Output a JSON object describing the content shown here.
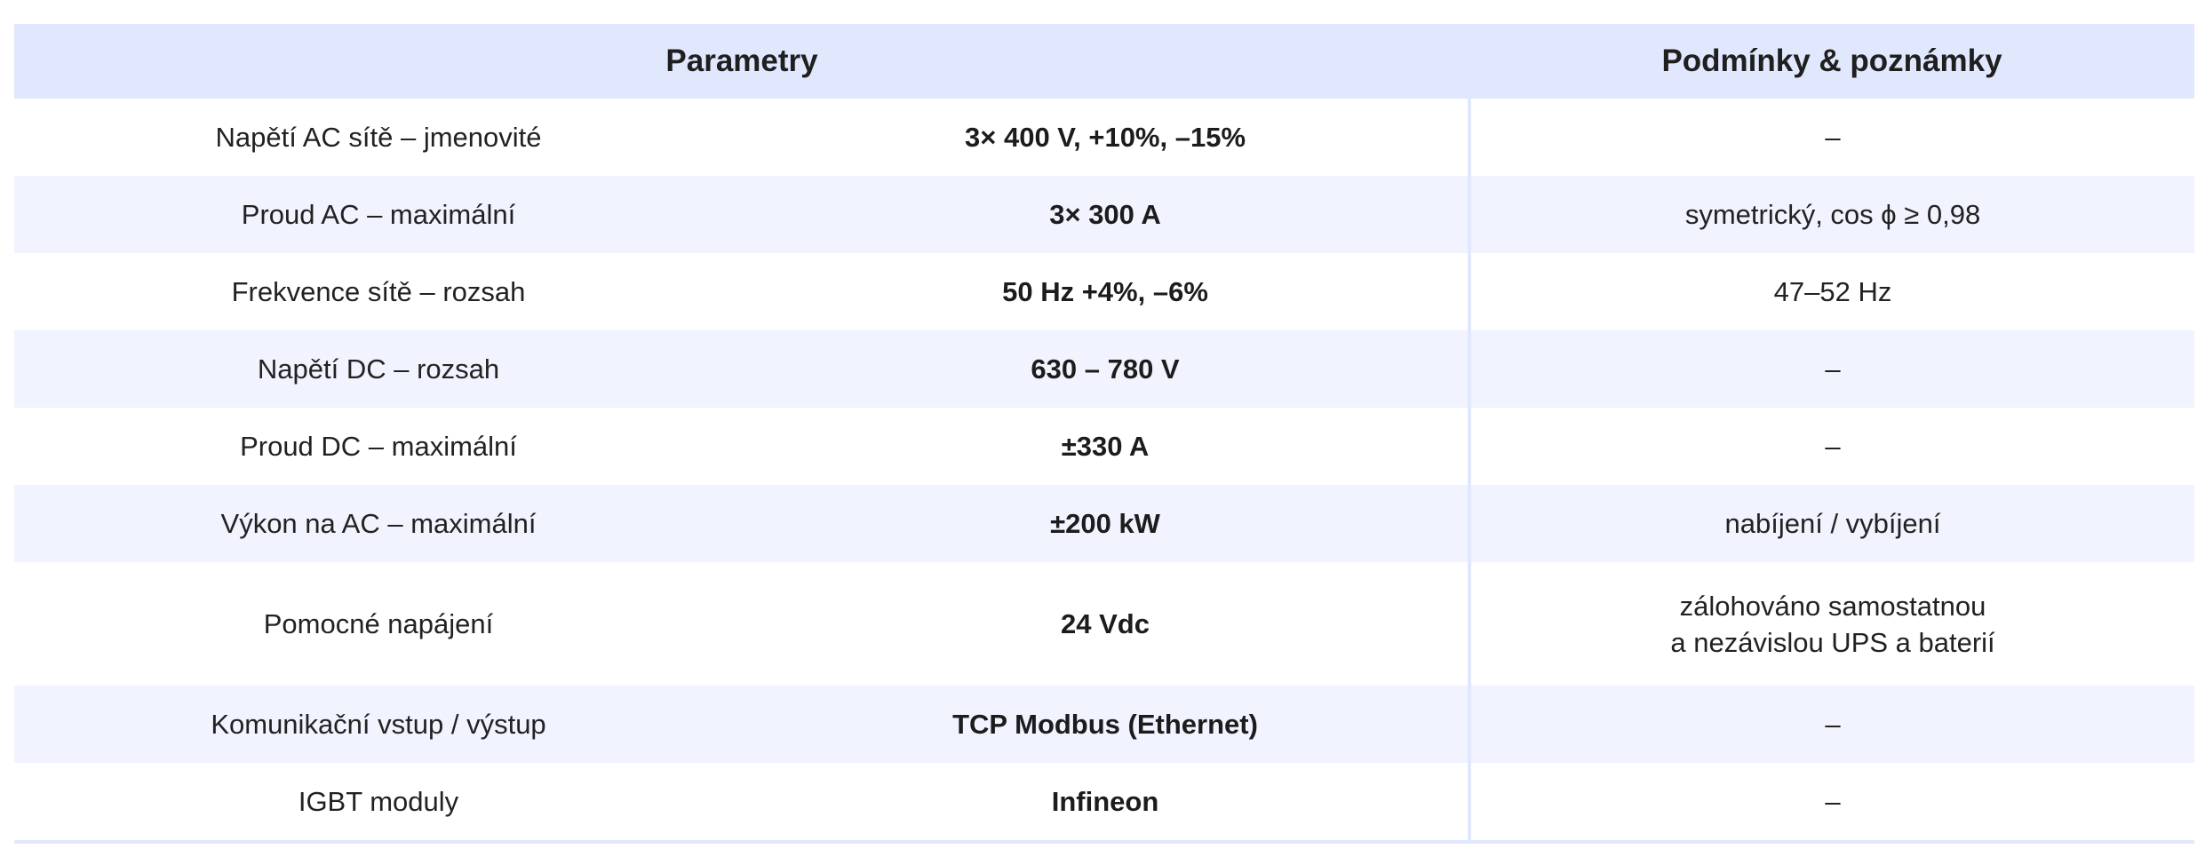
{
  "table": {
    "headers": {
      "parameters": "Parametry",
      "notes": "Podmínky & poznámky"
    },
    "rows": [
      {
        "param": "Napětí AC sítě – jmenovité",
        "value": "3× 400 V, +10%, –15%",
        "note": [
          "–"
        ]
      },
      {
        "param": "Proud AC – maximální",
        "value": "3× 300 A",
        "note": [
          "symetrický, cos ϕ ≥ 0,98"
        ]
      },
      {
        "param": "Frekvence sítě – rozsah",
        "value": "50 Hz +4%, –6%",
        "note": [
          "47–52 Hz"
        ]
      },
      {
        "param": "Napětí DC – rozsah",
        "value": "630 – 780 V",
        "note": [
          "–"
        ]
      },
      {
        "param": "Proud DC – maximální",
        "value": "±330 A",
        "note": [
          "–"
        ]
      },
      {
        "param": "Výkon na AC – maximální",
        "value": "±200 kW",
        "note": [
          "nabíjení / vybíjení"
        ]
      },
      {
        "param": "Pomocné napájení",
        "value": "24 Vdc",
        "note": [
          "zálohováno samostatnou",
          "a nezávislou UPS a baterií"
        ]
      },
      {
        "param": "Komunikační vstup / výstup",
        "value": "TCP Modbus (Ethernet)",
        "note": [
          "–"
        ]
      },
      {
        "param": "IGBT moduly",
        "value": "Infineon",
        "note": [
          "–"
        ]
      }
    ]
  }
}
